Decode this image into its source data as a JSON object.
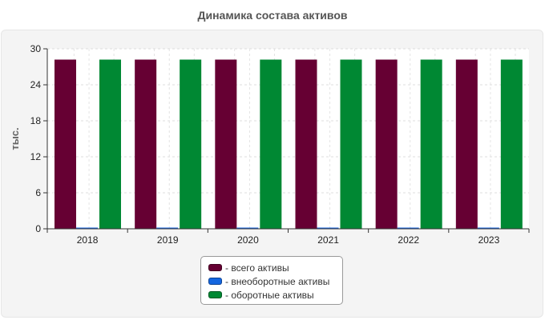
{
  "chart_data": {
    "type": "bar",
    "title": "Динамика состава активов",
    "ylabel": "тыс.",
    "xlabel": "",
    "categories": [
      "2018",
      "2019",
      "2020",
      "2021",
      "2022",
      "2023"
    ],
    "series": [
      {
        "name": "- всего активы",
        "color": "#660033",
        "values": [
          28.2,
          28.2,
          28.2,
          28.2,
          28.2,
          28.2
        ]
      },
      {
        "name": "- внеоборотные активы",
        "color": "#1466e0",
        "values": [
          0.15,
          0.15,
          0.15,
          0.15,
          0.15,
          0.15
        ]
      },
      {
        "name": "- оборотные активы",
        "color": "#008833",
        "values": [
          28.2,
          28.2,
          28.2,
          28.2,
          28.2,
          28.2
        ]
      }
    ],
    "ylim": [
      0,
      30
    ],
    "yticks": [
      "0",
      "6",
      "12",
      "18",
      "24",
      "30"
    ],
    "ytick_values": [
      0,
      6,
      12,
      18,
      24,
      30
    ],
    "grid": true,
    "legend_position": "bottom-center"
  }
}
